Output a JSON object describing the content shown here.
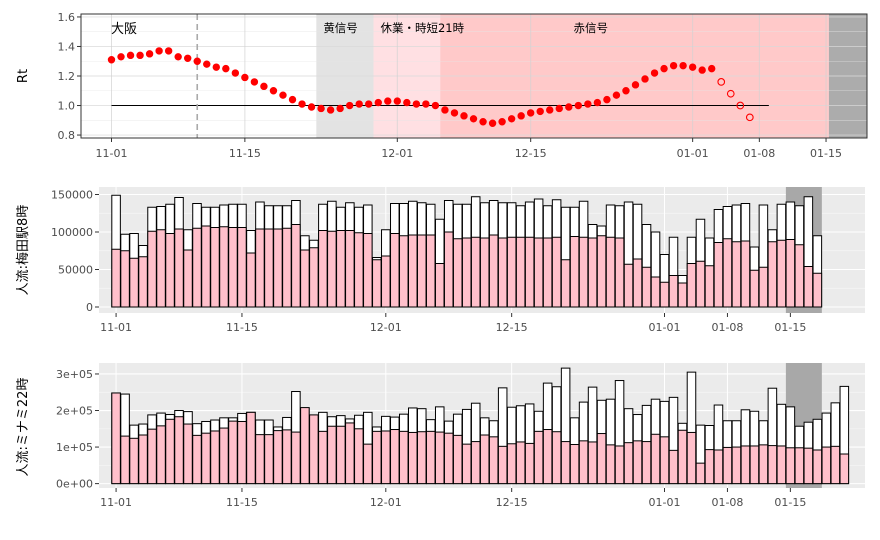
{
  "chart_data": [
    {
      "type": "scatter",
      "region": "大阪",
      "ylabel": "Rt",
      "ylim": [
        0.78,
        1.62
      ],
      "yticks": [
        0.8,
        1.0,
        1.2,
        1.4,
        1.6
      ],
      "ytick_labels": [
        "0.8",
        "1.0",
        "1.2",
        "1.4",
        "1.6"
      ],
      "xticks": [
        0,
        14,
        30,
        44,
        61,
        68,
        75
      ],
      "xtick_labels": [
        "11-01",
        "11-15",
        "12-01",
        "12-15",
        "01-01",
        "01-08",
        "01-15"
      ],
      "xlim": [
        -3.2,
        79.3
      ],
      "reference_line": 1.0,
      "dashed_vline_day": 9,
      "periods": [
        {
          "label": "黄信号",
          "start": 21.5,
          "end": 27.5,
          "color": "#e3e3e3"
        },
        {
          "label": "休業・時短21時",
          "start": 27.5,
          "end": 34.5,
          "color": "#ffe0e3"
        },
        {
          "label": "赤信号",
          "start": 34.5,
          "end": 75.3,
          "color": "#ffc9c9"
        },
        {
          "label": "",
          "start": 75.3,
          "end": 79.3,
          "color": "#acacac"
        }
      ],
      "series": [
        {
          "style": "filled",
          "x": [
            0,
            1,
            2,
            3,
            4,
            5,
            6,
            7,
            8,
            9,
            10,
            11,
            12,
            13,
            14,
            15,
            16,
            17,
            18,
            19,
            20,
            21,
            22,
            23,
            24,
            25,
            26,
            27,
            28,
            29,
            30,
            31,
            32,
            33,
            34,
            35,
            36,
            37,
            38,
            39,
            40,
            41,
            42,
            43,
            44,
            45,
            46,
            47,
            48,
            49,
            50,
            51,
            52,
            53,
            54,
            55,
            56,
            57,
            58,
            59,
            60,
            61,
            62,
            63
          ],
          "values": [
            1.31,
            1.33,
            1.34,
            1.34,
            1.35,
            1.37,
            1.37,
            1.33,
            1.32,
            1.3,
            1.28,
            1.26,
            1.25,
            1.22,
            1.19,
            1.16,
            1.13,
            1.1,
            1.07,
            1.04,
            1.01,
            0.99,
            0.98,
            0.97,
            0.98,
            1.0,
            1.01,
            1.01,
            1.02,
            1.03,
            1.03,
            1.02,
            1.01,
            1.01,
            1.0,
            0.97,
            0.95,
            0.93,
            0.91,
            0.89,
            0.88,
            0.89,
            0.91,
            0.93,
            0.95,
            0.96,
            0.97,
            0.98,
            0.99,
            1.0,
            1.01,
            1.02,
            1.04,
            1.07,
            1.1,
            1.14,
            1.18,
            1.22,
            1.25,
            1.27,
            1.27,
            1.26,
            1.24,
            1.25
          ]
        },
        {
          "style": "open",
          "x": [
            64,
            65,
            66,
            67
          ],
          "values": [
            1.16,
            1.08,
            1.0,
            0.92
          ]
        }
      ]
    },
    {
      "type": "bar",
      "ylabel": "人流:梅田駅8時",
      "ylim": [
        -8000,
        160000
      ],
      "yticks": [
        0,
        50000,
        100000,
        150000
      ],
      "ytick_labels": [
        "0",
        "50000",
        "100000",
        "150000"
      ],
      "xticks": [
        0,
        14,
        30,
        44,
        61,
        68,
        75
      ],
      "xtick_labels": [
        "11-01",
        "11-15",
        "12-01",
        "12-15",
        "01-01",
        "01-08",
        "01-15"
      ],
      "xlim": [
        -1.9,
        83.3
      ],
      "shade": {
        "start": 74.5,
        "end": 78.5,
        "color": "#a8a8a8"
      },
      "series": [
        {
          "name": "",
          "color": "#ffffff",
          "values": [
            149000,
            97000,
            98000,
            82000,
            133000,
            134000,
            137000,
            146000,
            103000,
            138000,
            133000,
            133000,
            136000,
            137000,
            137000,
            102000,
            140000,
            135000,
            135000,
            135000,
            142000,
            95000,
            89000,
            137000,
            141000,
            133000,
            139000,
            133000,
            136000,
            66000,
            103000,
            138000,
            138000,
            141000,
            139000,
            137000,
            117000,
            142000,
            137000,
            137000,
            147000,
            139000,
            142000,
            139000,
            139000,
            135000,
            140000,
            144000,
            135000,
            143000,
            133000,
            133000,
            141000,
            110000,
            108000,
            136000,
            135000,
            140000,
            137000,
            110000,
            100000,
            70000,
            93000,
            42000,
            93000,
            117000,
            92000,
            130000,
            134000,
            136000,
            138000,
            80000,
            136000,
            103000,
            137000,
            140000,
            135000,
            147000,
            95000
          ]
        },
        {
          "name": "",
          "color": "#ffc0cb",
          "values": [
            77000,
            75000,
            65000,
            67000,
            101000,
            103000,
            98000,
            104000,
            76000,
            105000,
            108000,
            106000,
            107000,
            106000,
            106000,
            72000,
            104000,
            104000,
            104000,
            105000,
            110000,
            76000,
            79000,
            102000,
            101000,
            102000,
            102000,
            99000,
            98000,
            63000,
            68000,
            98000,
            95000,
            96000,
            96000,
            96000,
            58000,
            100000,
            91000,
            92000,
            93000,
            92000,
            96000,
            92000,
            93000,
            93000,
            93000,
            92000,
            92000,
            93000,
            63000,
            94000,
            93000,
            92000,
            95000,
            93000,
            92000,
            57000,
            64000,
            53000,
            40000,
            33000,
            42000,
            32000,
            58000,
            61000,
            55000,
            86000,
            91000,
            87000,
            88000,
            49000,
            53000,
            87000,
            89000,
            90000,
            83000,
            54000,
            45000
          ]
        }
      ]
    },
    {
      "type": "bar",
      "ylabel": "人流:ミナミ22時",
      "ylim": [
        -12000,
        330000
      ],
      "yticks": [
        0,
        100000,
        200000,
        300000
      ],
      "ytick_labels": [
        "0e+00",
        "1e+05",
        "2e+05",
        "3e+05"
      ],
      "xticks": [
        0,
        14,
        30,
        44,
        61,
        68,
        75
      ],
      "xtick_labels": [
        "11-01",
        "11-15",
        "12-01",
        "12-15",
        "01-01",
        "01-08",
        "01-15"
      ],
      "xlim": [
        -1.9,
        83.3
      ],
      "shade": {
        "start": 74.5,
        "end": 78.5,
        "color": "#a8a8a8"
      },
      "series": [
        {
          "name": "",
          "color": "#ffffff",
          "values": [
            248000,
            245000,
            160000,
            163000,
            188000,
            193000,
            189000,
            200000,
            197000,
            164000,
            170000,
            174000,
            180000,
            180000,
            192000,
            195000,
            174000,
            174000,
            155000,
            181000,
            252000,
            207000,
            178000,
            195000,
            183000,
            186000,
            177000,
            187000,
            195000,
            155000,
            184000,
            182000,
            190000,
            207000,
            205000,
            175000,
            210000,
            171000,
            190000,
            203000,
            220000,
            180000,
            172000,
            262000,
            209000,
            213000,
            218000,
            198000,
            275000,
            265000,
            316000,
            180000,
            223000,
            264000,
            228000,
            231000,
            282000,
            205000,
            189000,
            214000,
            231000,
            225000,
            236000,
            165000,
            305000,
            160000,
            159000,
            215000,
            172000,
            172000,
            202000,
            198000,
            172000,
            261000,
            217000,
            210000,
            157000,
            168000,
            176000,
            193000,
            221000,
            266000
          ]
        },
        {
          "name": "",
          "color": "#ffc0cb",
          "values": [
            248000,
            130000,
            124000,
            133000,
            149000,
            158000,
            176000,
            183000,
            163000,
            132000,
            138000,
            144000,
            152000,
            171000,
            170000,
            195000,
            134000,
            134000,
            145000,
            147000,
            141000,
            208000,
            188000,
            143000,
            157000,
            157000,
            166000,
            150000,
            108000,
            143000,
            144000,
            148000,
            143000,
            140000,
            142000,
            143000,
            141000,
            138000,
            132000,
            108000,
            115000,
            133000,
            128000,
            102000,
            109000,
            114000,
            110000,
            143000,
            148000,
            142000,
            115000,
            107000,
            117000,
            114000,
            137000,
            106000,
            103000,
            112000,
            117000,
            115000,
            135000,
            128000,
            91000,
            146000,
            140000,
            56000,
            93000,
            92000,
            99000,
            100000,
            103000,
            103000,
            106000,
            104000,
            103000,
            98000,
            98000,
            97000,
            92000,
            100000,
            102000,
            81000
          ]
        }
      ]
    }
  ]
}
